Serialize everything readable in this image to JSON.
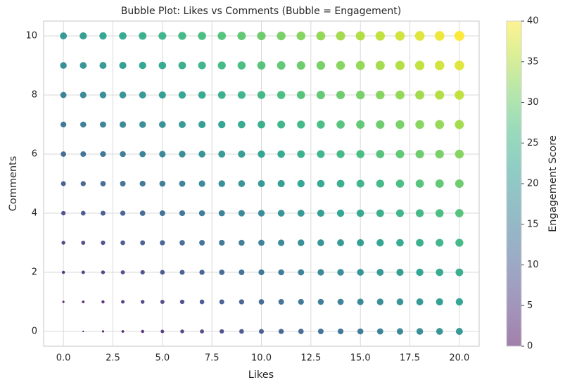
{
  "chart_data": {
    "type": "bubble",
    "title": "Bubble Plot: Likes vs Comments (Bubble = Engagement)",
    "x_label": "Likes",
    "y_label": "Comments",
    "colorbar_label": "Engagement Score",
    "colormap": "viridis",
    "xlim": [
      -1,
      21
    ],
    "ylim": [
      -0.5,
      10.5
    ],
    "clim": [
      0,
      40
    ],
    "xticks": [
      {
        "value": 0,
        "label": "0.0"
      },
      {
        "value": 2.5,
        "label": "2.5"
      },
      {
        "value": 5,
        "label": "5.0"
      },
      {
        "value": 7.5,
        "label": "7.5"
      },
      {
        "value": 10,
        "label": "10.0"
      },
      {
        "value": 12.5,
        "label": "12.5"
      },
      {
        "value": 15,
        "label": "15.0"
      },
      {
        "value": 17.5,
        "label": "17.5"
      },
      {
        "value": 20,
        "label": "20.0"
      }
    ],
    "yticks": [
      0,
      2,
      4,
      6,
      8,
      10
    ],
    "cticks": [
      0,
      5,
      10,
      15,
      20,
      25,
      30,
      35,
      40
    ],
    "grid": true,
    "x": [
      0,
      1,
      2,
      3,
      4,
      5,
      6,
      7,
      8,
      9,
      10,
      11,
      12,
      13,
      14,
      15,
      16,
      17,
      18,
      19,
      20,
      0,
      1,
      2,
      3,
      4,
      5,
      6,
      7,
      8,
      9,
      10,
      11,
      12,
      13,
      14,
      15,
      16,
      17,
      18,
      19,
      20,
      0,
      1,
      2,
      3,
      4,
      5,
      6,
      7,
      8,
      9,
      10,
      11,
      12,
      13,
      14,
      15,
      16,
      17,
      18,
      19,
      20,
      0,
      1,
      2,
      3,
      4,
      5,
      6,
      7,
      8,
      9,
      10,
      11,
      12,
      13,
      14,
      15,
      16,
      17,
      18,
      19,
      20,
      0,
      1,
      2,
      3,
      4,
      5,
      6,
      7,
      8,
      9,
      10,
      11,
      12,
      13,
      14,
      15,
      16,
      17,
      18,
      19,
      20,
      0,
      1,
      2,
      3,
      4,
      5,
      6,
      7,
      8,
      9,
      10,
      11,
      12,
      13,
      14,
      15,
      16,
      17,
      18,
      19,
      20,
      0,
      1,
      2,
      3,
      4,
      5,
      6,
      7,
      8,
      9,
      10,
      11,
      12,
      13,
      14,
      15,
      16,
      17,
      18,
      19,
      20,
      0,
      1,
      2,
      3,
      4,
      5,
      6,
      7,
      8,
      9,
      10,
      11,
      12,
      13,
      14,
      15,
      16,
      17,
      18,
      19,
      20,
      0,
      1,
      2,
      3,
      4,
      5,
      6,
      7,
      8,
      9,
      10,
      11,
      12,
      13,
      14,
      15,
      16,
      17,
      18,
      19,
      20,
      0,
      1,
      2,
      3,
      4,
      5,
      6,
      7,
      8,
      9,
      10,
      11,
      12,
      13,
      14,
      15,
      16,
      17,
      18,
      19,
      20,
      0,
      1,
      2,
      3,
      4,
      5,
      6,
      7,
      8,
      9,
      10,
      11,
      12,
      13,
      14,
      15,
      16,
      17,
      18,
      19,
      20
    ],
    "y": [
      0,
      0,
      0,
      0,
      0,
      0,
      0,
      0,
      0,
      0,
      0,
      0,
      0,
      0,
      0,
      0,
      0,
      0,
      0,
      0,
      0,
      1,
      1,
      1,
      1,
      1,
      1,
      1,
      1,
      1,
      1,
      1,
      1,
      1,
      1,
      1,
      1,
      1,
      1,
      1,
      1,
      1,
      2,
      2,
      2,
      2,
      2,
      2,
      2,
      2,
      2,
      2,
      2,
      2,
      2,
      2,
      2,
      2,
      2,
      2,
      2,
      2,
      2,
      3,
      3,
      3,
      3,
      3,
      3,
      3,
      3,
      3,
      3,
      3,
      3,
      3,
      3,
      3,
      3,
      3,
      3,
      3,
      3,
      3,
      4,
      4,
      4,
      4,
      4,
      4,
      4,
      4,
      4,
      4,
      4,
      4,
      4,
      4,
      4,
      4,
      4,
      4,
      4,
      4,
      4,
      5,
      5,
      5,
      5,
      5,
      5,
      5,
      5,
      5,
      5,
      5,
      5,
      5,
      5,
      5,
      5,
      5,
      5,
      5,
      5,
      5,
      6,
      6,
      6,
      6,
      6,
      6,
      6,
      6,
      6,
      6,
      6,
      6,
      6,
      6,
      6,
      6,
      6,
      6,
      6,
      6,
      6,
      7,
      7,
      7,
      7,
      7,
      7,
      7,
      7,
      7,
      7,
      7,
      7,
      7,
      7,
      7,
      7,
      7,
      7,
      7,
      7,
      7,
      8,
      8,
      8,
      8,
      8,
      8,
      8,
      8,
      8,
      8,
      8,
      8,
      8,
      8,
      8,
      8,
      8,
      8,
      8,
      8,
      8,
      9,
      9,
      9,
      9,
      9,
      9,
      9,
      9,
      9,
      9,
      9,
      9,
      9,
      9,
      9,
      9,
      9,
      9,
      9,
      9,
      9,
      10,
      10,
      10,
      10,
      10,
      10,
      10,
      10,
      10,
      10,
      10,
      10,
      10,
      10,
      10,
      10,
      10,
      10,
      10,
      10,
      10
    ],
    "sizes": [
      0,
      1,
      2,
      3,
      4,
      5,
      6,
      7,
      8,
      9,
      10,
      11,
      12,
      13,
      14,
      15,
      16,
      17,
      18,
      19,
      20,
      2,
      3,
      4,
      5,
      6,
      7,
      8,
      9,
      10,
      11,
      12,
      13,
      14,
      15,
      16,
      17,
      18,
      19,
      20,
      21,
      22,
      4,
      5,
      6,
      7,
      8,
      9,
      10,
      11,
      12,
      13,
      14,
      15,
      16,
      17,
      18,
      19,
      20,
      21,
      22,
      23,
      24,
      6,
      7,
      8,
      9,
      10,
      11,
      12,
      13,
      14,
      15,
      16,
      17,
      18,
      19,
      20,
      21,
      22,
      23,
      24,
      25,
      26,
      8,
      9,
      10,
      11,
      12,
      13,
      14,
      15,
      16,
      17,
      18,
      19,
      20,
      21,
      22,
      23,
      24,
      25,
      26,
      27,
      28,
      10,
      11,
      12,
      13,
      14,
      15,
      16,
      17,
      18,
      19,
      20,
      21,
      22,
      23,
      24,
      25,
      26,
      27,
      28,
      29,
      30,
      12,
      13,
      14,
      15,
      16,
      17,
      18,
      19,
      20,
      21,
      22,
      23,
      24,
      25,
      26,
      27,
      28,
      29,
      30,
      31,
      32,
      14,
      15,
      16,
      17,
      18,
      19,
      20,
      21,
      22,
      23,
      24,
      25,
      26,
      27,
      28,
      29,
      30,
      31,
      32,
      33,
      34,
      16,
      17,
      18,
      19,
      20,
      21,
      22,
      23,
      24,
      25,
      26,
      27,
      28,
      29,
      30,
      31,
      32,
      33,
      34,
      35,
      36,
      18,
      19,
      20,
      21,
      22,
      23,
      24,
      25,
      26,
      27,
      28,
      29,
      30,
      31,
      32,
      33,
      34,
      35,
      36,
      37,
      38,
      20,
      21,
      22,
      23,
      24,
      25,
      26,
      27,
      28,
      29,
      30,
      31,
      32,
      33,
      34,
      35,
      36,
      37,
      38,
      39,
      40
    ]
  }
}
